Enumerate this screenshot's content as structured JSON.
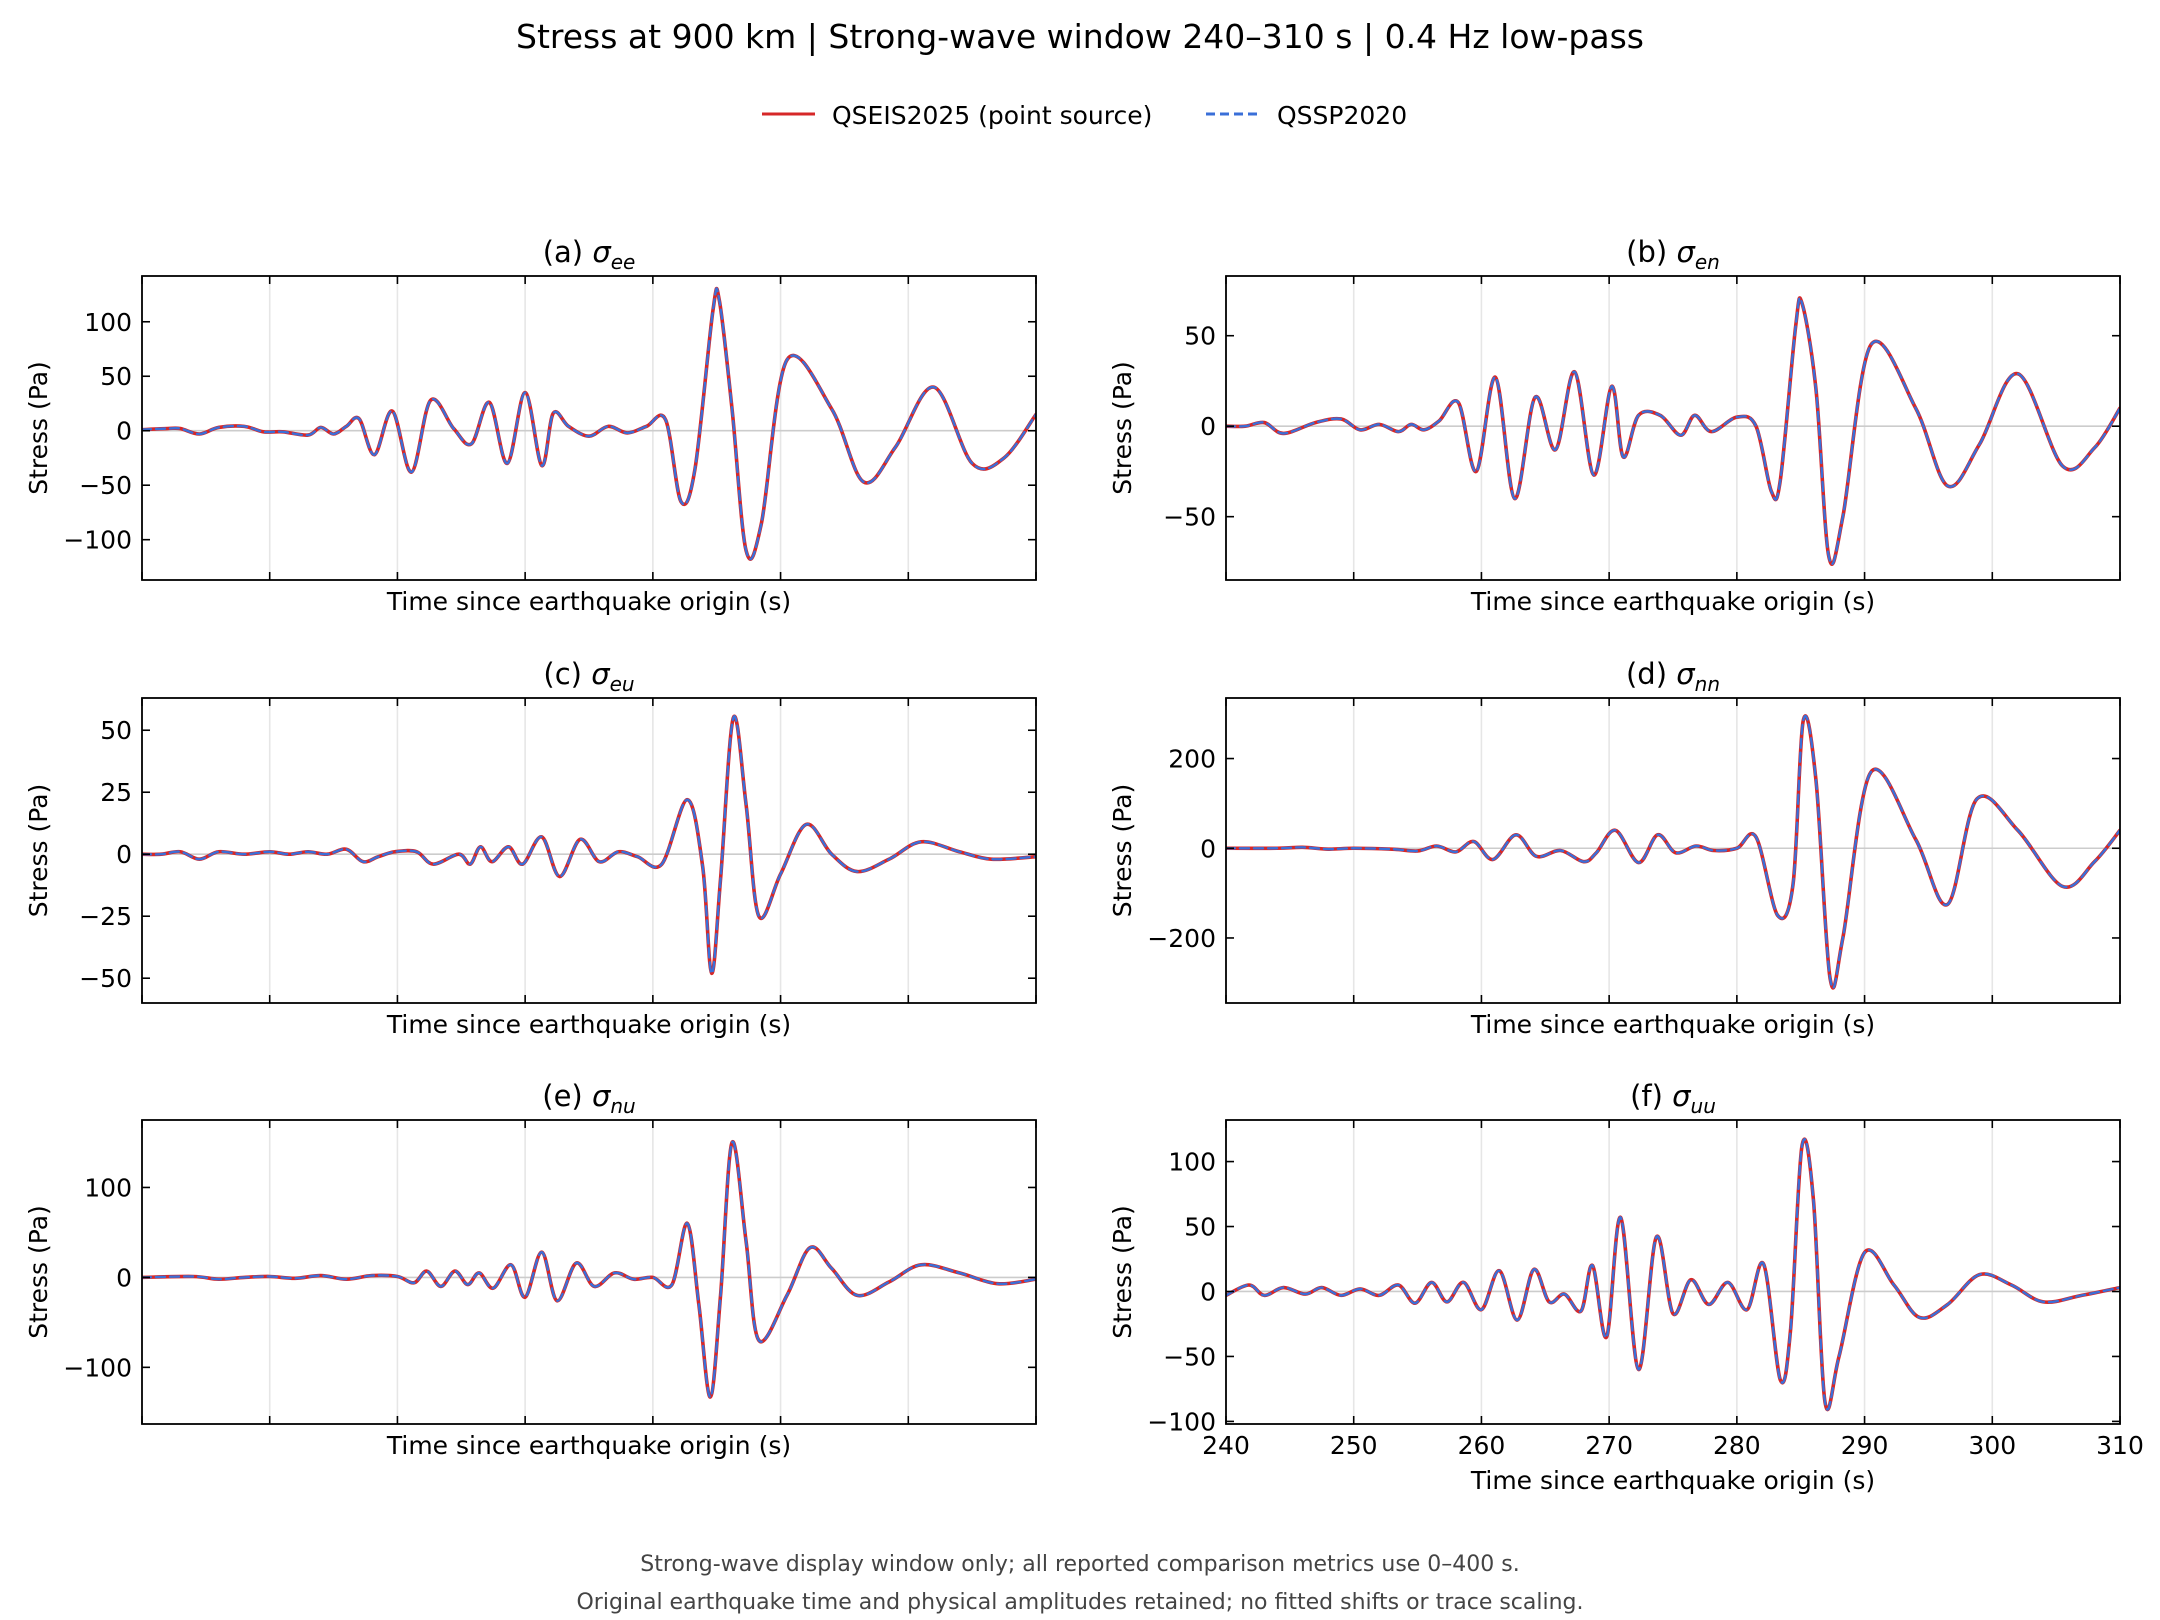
{
  "figure": {
    "title": "Stress at 900 km | Strong-wave window 240–310 s | 0.4 Hz low-pass",
    "footnote_lines": [
      "Strong-wave display window only; all reported comparison metrics use 0–400 s.",
      "Original earthquake time and physical amplitudes retained; no fitted shifts or trace scaling."
    ],
    "legend": [
      {
        "label": "QSEIS2025 (point source)",
        "color": "#d62728",
        "style": "solid"
      },
      {
        "label": "QSSP2020",
        "color": "#3a6fd8",
        "style": "dashed"
      }
    ]
  },
  "chart_data": [
    {
      "type": "line",
      "panel": "a",
      "title_prefix": "(a) ",
      "symbol": "σ",
      "subscript": "ee",
      "xlabel": "Time since earthquake origin (s)",
      "ylabel": "Stress (Pa)",
      "xlim": [
        240,
        310
      ],
      "ylim": [
        -137,
        142
      ],
      "yticks": [
        -100,
        -50,
        0,
        50,
        100
      ],
      "xticks": [
        240,
        250,
        260,
        270,
        280,
        290,
        300,
        310
      ],
      "show_xticklabels": false,
      "grid": "x",
      "x": [
        240,
        242,
        243,
        244.5,
        246,
        248,
        249.5,
        251,
        253,
        254,
        255,
        256,
        257,
        258.2,
        259.6,
        261.1,
        262.6,
        264.4,
        265.8,
        267.2,
        268.6,
        270,
        271.3,
        272.2,
        273.4,
        275,
        276.5,
        278,
        279.5,
        281,
        282.2,
        283.3,
        284.7,
        285.2,
        286.2,
        287.3,
        288.5,
        290.5,
        294,
        296.5,
        299,
        302,
        305,
        307.5,
        310
      ],
      "series": [
        {
          "name": "QSEIS2025 (point source)",
          "values": [
            1,
            2,
            2,
            -3,
            3,
            4,
            -1,
            -1,
            -4,
            3,
            -3,
            4,
            11,
            -22,
            18,
            -38,
            28,
            2,
            -12,
            26,
            -30,
            35,
            -32,
            16,
            4,
            -5,
            4,
            -2,
            4,
            10,
            -65,
            -35,
            110,
            120,
            20,
            -110,
            -85,
            65,
            20,
            -47,
            -15,
            40,
            -30,
            -25,
            15
          ]
        },
        {
          "name": "QSSP2020",
          "values": [
            1,
            2,
            2,
            -3,
            3,
            4,
            -1,
            -1,
            -4,
            3,
            -3,
            4,
            11,
            -22,
            18,
            -38,
            28,
            2,
            -12,
            26,
            -30,
            35,
            -32,
            16,
            4,
            -5,
            4,
            -2,
            4,
            10,
            -65,
            -35,
            110,
            120,
            20,
            -110,
            -85,
            65,
            20,
            -47,
            -15,
            40,
            -30,
            -25,
            15
          ]
        }
      ]
    },
    {
      "type": "line",
      "panel": "b",
      "title_prefix": "(b) ",
      "symbol": "σ",
      "subscript": "en",
      "xlabel": "Time since earthquake origin (s)",
      "ylabel": "Stress (Pa)",
      "xlim": [
        240,
        310
      ],
      "ylim": [
        -85,
        83
      ],
      "yticks": [
        -50,
        0,
        50
      ],
      "xticks": [
        240,
        250,
        260,
        270,
        280,
        290,
        300,
        310
      ],
      "show_xticklabels": false,
      "grid": "x",
      "x": [
        240,
        241.5,
        243,
        244.5,
        247,
        249,
        250.5,
        252,
        253.5,
        254.5,
        255.5,
        256.7,
        258.2,
        259.6,
        261.1,
        262.6,
        264.2,
        265.8,
        267.3,
        268.8,
        270.2,
        271.1,
        272.3,
        274,
        275.6,
        276.7,
        278,
        280,
        281.5,
        282.7,
        283.4,
        284.6,
        285.1,
        286.2,
        287.2,
        288.3,
        290.5,
        294,
        296.5,
        299,
        302,
        305.5,
        308,
        310
      ],
      "series": [
        {
          "name": "QSEIS2025 (point source)",
          "values": [
            0,
            0,
            2,
            -4,
            2,
            4,
            -2,
            1,
            -3,
            1,
            -2,
            3,
            13,
            -25,
            27,
            -40,
            16,
            -13,
            30,
            -27,
            22,
            -17,
            6,
            6,
            -5,
            6,
            -3,
            5,
            0,
            -36,
            -30,
            55,
            68,
            20,
            -72,
            -50,
            45,
            10,
            -33,
            -10,
            29,
            -22,
            -12,
            10
          ]
        },
        {
          "name": "QSSP2020",
          "values": [
            0,
            0,
            2,
            -4,
            2,
            4,
            -2,
            1,
            -3,
            1,
            -2,
            3,
            13,
            -25,
            27,
            -40,
            16,
            -13,
            30,
            -27,
            22,
            -17,
            6,
            6,
            -5,
            6,
            -3,
            5,
            0,
            -36,
            -30,
            55,
            68,
            20,
            -72,
            -50,
            45,
            10,
            -33,
            -10,
            29,
            -22,
            -12,
            10
          ]
        }
      ]
    },
    {
      "type": "line",
      "panel": "c",
      "title_prefix": "(c) ",
      "symbol": "σ",
      "subscript": "eu",
      "xlabel": "Time since earthquake origin (s)",
      "ylabel": "Stress (Pa)",
      "xlim": [
        240,
        310
      ],
      "ylim": [
        -60,
        63
      ],
      "yticks": [
        -50,
        -25,
        0,
        25,
        50
      ],
      "xticks": [
        240,
        250,
        260,
        270,
        280,
        290,
        300,
        310
      ],
      "show_xticklabels": false,
      "grid": "x",
      "x": [
        240,
        241.5,
        243,
        244.5,
        246,
        248,
        250,
        251.5,
        253,
        254.5,
        256,
        257.3,
        258.5,
        259.8,
        261.5,
        262.8,
        264.8,
        265.7,
        266.5,
        267.4,
        268.7,
        269.8,
        271.3,
        272.7,
        274.3,
        275.8,
        277.3,
        278.8,
        280.7,
        282.7,
        283.9,
        284.6,
        285.3,
        286.3,
        287.3,
        288.3,
        290,
        292,
        294,
        296,
        298.5,
        301,
        304,
        306.5,
        310
      ],
      "series": [
        {
          "name": "QSEIS2025 (point source)",
          "values": [
            0,
            0,
            1,
            -2,
            1,
            0,
            1,
            0,
            1,
            0,
            2,
            -3,
            -1,
            1,
            1,
            -4,
            0,
            -4,
            3,
            -3,
            3,
            -4,
            7,
            -9,
            6,
            -3,
            1,
            -1,
            -4,
            22,
            -5,
            -48,
            -10,
            55,
            20,
            -25,
            -8,
            12,
            0,
            -7,
            -2,
            5,
            1,
            -2,
            -1
          ]
        },
        {
          "name": "QSSP2020",
          "values": [
            0,
            0,
            1,
            -2,
            1,
            0,
            1,
            0,
            1,
            0,
            2,
            -3,
            -1,
            1,
            1,
            -4,
            0,
            -4,
            3,
            -3,
            3,
            -4,
            7,
            -9,
            6,
            -3,
            1,
            -1,
            -4,
            22,
            -5,
            -48,
            -10,
            55,
            20,
            -25,
            -8,
            12,
            0,
            -7,
            -2,
            5,
            1,
            -2,
            -1
          ]
        }
      ]
    },
    {
      "type": "line",
      "panel": "d",
      "title_prefix": "(d) ",
      "symbol": "σ",
      "subscript": "nn",
      "xlabel": "Time since earthquake origin (s)",
      "ylabel": "Stress (Pa)",
      "xlim": [
        240,
        310
      ],
      "ylim": [
        -345,
        335
      ],
      "yticks": [
        -200,
        0,
        200
      ],
      "xticks": [
        240,
        250,
        260,
        270,
        280,
        290,
        300,
        310
      ],
      "show_xticklabels": false,
      "grid": "x",
      "x": [
        240,
        244,
        246,
        248,
        250,
        253,
        255,
        256.5,
        258,
        259.4,
        260.9,
        262.7,
        264.3,
        266.2,
        268,
        269,
        270.5,
        272.3,
        273.8,
        275.2,
        276.8,
        278.2,
        280,
        281.5,
        283.2,
        284.4,
        285.2,
        286.2,
        287.3,
        288.3,
        290.5,
        294,
        296.5,
        298.8,
        302,
        305.5,
        308,
        310
      ],
      "series": [
        {
          "name": "QSEIS2025 (point source)",
          "values": [
            0,
            0,
            2,
            -2,
            0,
            -2,
            -6,
            5,
            -8,
            15,
            -25,
            30,
            -18,
            -5,
            -30,
            -10,
            40,
            -32,
            30,
            -10,
            5,
            -5,
            0,
            25,
            -150,
            -80,
            285,
            150,
            -290,
            -200,
            170,
            20,
            -125,
            110,
            40,
            -85,
            -30,
            40
          ]
        },
        {
          "name": "QSSP2020",
          "values": [
            0,
            0,
            2,
            -2,
            0,
            -2,
            -6,
            5,
            -8,
            15,
            -25,
            30,
            -18,
            -5,
            -30,
            -10,
            40,
            -32,
            30,
            -10,
            5,
            -5,
            0,
            25,
            -150,
            -80,
            285,
            150,
            -290,
            -200,
            170,
            20,
            -125,
            110,
            40,
            -85,
            -30,
            40
          ]
        }
      ]
    },
    {
      "type": "line",
      "panel": "e",
      "title_prefix": "(e) ",
      "symbol": "σ",
      "subscript": "nu",
      "xlabel": "Time since earthquake origin (s)",
      "ylabel": "Stress (Pa)",
      "xlim": [
        240,
        310
      ],
      "ylim": [
        -163,
        175
      ],
      "yticks": [
        -100,
        0,
        100
      ],
      "xticks": [
        240,
        250,
        260,
        270,
        280,
        290,
        300,
        310
      ],
      "show_xticklabels": false,
      "grid": "x",
      "x": [
        240,
        244,
        246,
        248,
        250,
        252,
        254,
        256,
        258,
        260,
        261.3,
        262.3,
        263.4,
        264.5,
        265.5,
        266.4,
        267.5,
        268.9,
        270,
        271.3,
        272.5,
        274,
        275.4,
        277,
        278.5,
        280,
        281.5,
        282.7,
        283.6,
        284.5,
        285.3,
        286.2,
        287.3,
        288.3,
        290.5,
        292.3,
        294,
        296,
        298.5,
        301,
        304,
        307,
        310
      ],
      "series": [
        {
          "name": "QSEIS2025 (point source)",
          "values": [
            0,
            1,
            -2,
            0,
            1,
            -1,
            2,
            -2,
            2,
            1,
            -6,
            7,
            -10,
            7,
            -8,
            5,
            -12,
            14,
            -22,
            28,
            -26,
            16,
            -10,
            5,
            -2,
            0,
            -8,
            60,
            -30,
            -133,
            -20,
            150,
            40,
            -70,
            -20,
            33,
            10,
            -20,
            -5,
            14,
            5,
            -7,
            -2
          ]
        },
        {
          "name": "QSSP2020",
          "values": [
            0,
            1,
            -2,
            0,
            1,
            -1,
            2,
            -2,
            2,
            1,
            -6,
            7,
            -10,
            7,
            -8,
            5,
            -12,
            14,
            -22,
            28,
            -26,
            16,
            -10,
            5,
            -2,
            0,
            -8,
            60,
            -30,
            -133,
            -20,
            150,
            40,
            -70,
            -20,
            33,
            10,
            -20,
            -5,
            14,
            5,
            -7,
            -2
          ]
        }
      ]
    },
    {
      "type": "line",
      "panel": "f",
      "title_prefix": "(f) ",
      "symbol": "σ",
      "subscript": "uu",
      "xlabel": "Time since earthquake origin (s)",
      "ylabel": "Stress (Pa)",
      "xlim": [
        240,
        310
      ],
      "ylim": [
        -102,
        132
      ],
      "yticks": [
        -100,
        -50,
        0,
        50,
        100
      ],
      "xticks": [
        240,
        250,
        260,
        270,
        280,
        290,
        300,
        310
      ],
      "show_xticklabels": true,
      "grid": "x",
      "x": [
        240,
        241.8,
        243,
        244.5,
        246.2,
        247.5,
        249,
        250.5,
        252,
        253.5,
        254.8,
        256.1,
        257.3,
        258.6,
        260,
        261.4,
        262.8,
        264.1,
        265.3,
        266.5,
        267.8,
        268.7,
        269.8,
        270.9,
        272.3,
        273.7,
        275,
        276.4,
        277.8,
        279.3,
        280.8,
        282.1,
        283.4,
        284.2,
        285.1,
        286,
        286.9,
        288,
        290,
        292.3,
        294.3,
        296.5,
        299,
        301.5,
        304,
        307,
        310
      ],
      "series": [
        {
          "name": "QSEIS2025 (point source)",
          "values": [
            -3,
            5,
            -3,
            3,
            -2,
            3,
            -3,
            2,
            -3,
            5,
            -9,
            7,
            -8,
            7,
            -14,
            16,
            -22,
            17,
            -8,
            -2,
            -15,
            20,
            -35,
            57,
            -60,
            42,
            -17,
            9,
            -10,
            7,
            -14,
            21,
            -68,
            -30,
            112,
            70,
            -85,
            -50,
            30,
            5,
            -20,
            -10,
            13,
            5,
            -8,
            -3,
            3
          ]
        },
        {
          "name": "QSSP2020",
          "values": [
            -3,
            5,
            -3,
            3,
            -2,
            3,
            -3,
            2,
            -3,
            5,
            -9,
            7,
            -8,
            7,
            -14,
            16,
            -22,
            17,
            -8,
            -2,
            -15,
            20,
            -35,
            57,
            -60,
            42,
            -17,
            9,
            -10,
            7,
            -14,
            21,
            -68,
            -30,
            112,
            70,
            -85,
            -50,
            30,
            5,
            -20,
            -10,
            13,
            5,
            -8,
            -3,
            3
          ]
        }
      ]
    }
  ]
}
